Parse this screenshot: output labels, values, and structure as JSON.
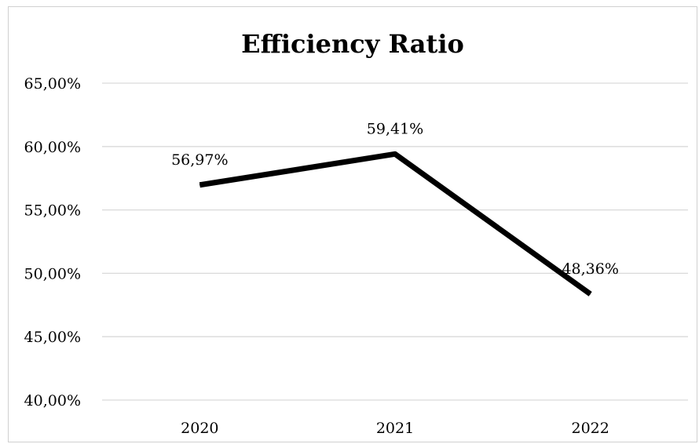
{
  "chart_data": {
    "type": "line",
    "title": "Efficiency Ratio",
    "xlabel": "",
    "ylabel": "",
    "categories": [
      "2020",
      "2021",
      "2022"
    ],
    "series": [
      {
        "values": [
          56.97,
          59.41,
          48.36
        ],
        "data_labels": [
          "56,97%",
          "59,41%",
          "48,36%"
        ]
      }
    ],
    "ylim": [
      40,
      65
    ],
    "yticks": [
      40,
      45,
      50,
      55,
      60,
      65
    ],
    "ytick_labels": [
      "40,00%",
      "45,00%",
      "50,00%",
      "55,00%",
      "60,00%",
      "65,00%"
    ],
    "grid": "horizontal",
    "legend": "none",
    "colors": {
      "line": "#000000",
      "grid": "#d9d9d9",
      "frame": "#d0d0d0",
      "text": "#000000"
    }
  }
}
